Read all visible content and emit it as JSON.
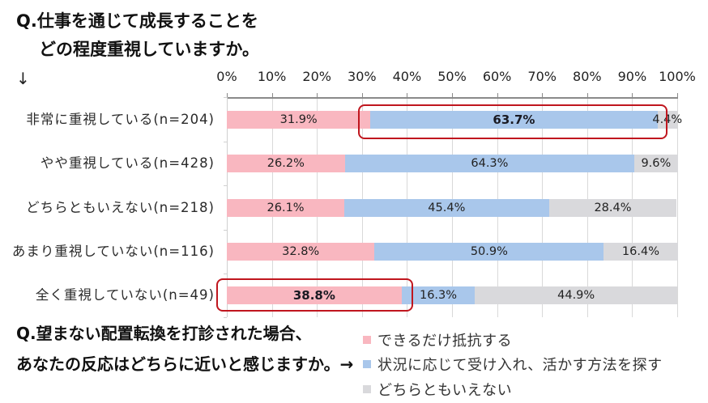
{
  "header": {
    "question1_line1": "Q.仕事を通じて成長することを",
    "question1_line2": "どの程度重視していますか。",
    "down_arrow": "↓"
  },
  "footer": {
    "question2_line1": "Q.望まない配置転換を打診された場合、",
    "question2_line2": "あなたの反応はどちらに近いと感じますか。→"
  },
  "legend": {
    "items": [
      {
        "label": "できるだけ抵抗する",
        "color": "#F9B7C0"
      },
      {
        "label": "状況に応じて受け入れ、活かす方法を探す",
        "color": "#A9C7EB"
      },
      {
        "label": "どちらともいえない",
        "color": "#D9D9DC"
      }
    ]
  },
  "chart_data": {
    "type": "bar",
    "orientation": "horizontal",
    "stacked": true,
    "percent": true,
    "title": "Q.仕事を通じて成長することをどの程度重視していますか。",
    "subtitle": "Q.望まない配置転換を打診された場合、あなたの反応はどちらに近いと感じますか。",
    "xlabel": "",
    "ylabel": "",
    "xlim": [
      0,
      100
    ],
    "xticks": [
      "0%",
      "10%",
      "20%",
      "30%",
      "40%",
      "50%",
      "60%",
      "70%",
      "80%",
      "90%",
      "100%"
    ],
    "grid": true,
    "legend_position": "bottom-right",
    "categories": [
      "非常に重視している(n=204)",
      "やや重視している(n=428)",
      "どちらともいえない(n=218)",
      "あまり重視していない(n=116)",
      "全く重視していない(n=49)"
    ],
    "series": [
      {
        "name": "できるだけ抵抗する",
        "color": "#F9B7C0",
        "values": [
          31.9,
          26.2,
          26.1,
          32.8,
          38.8
        ],
        "labels": [
          "31.9%",
          "26.2%",
          "26.1%",
          "32.8%",
          "38.8%"
        ]
      },
      {
        "name": "状況に応じて受け入れ、活かす方法を探す",
        "color": "#A9C7EB",
        "values": [
          63.7,
          64.3,
          45.4,
          50.9,
          16.3
        ],
        "labels": [
          "63.7%",
          "64.3%",
          "45.4%",
          "50.9%",
          "16.3%"
        ]
      },
      {
        "name": "どちらともいえない",
        "color": "#D9D9DC",
        "values": [
          4.4,
          9.6,
          28.4,
          16.4,
          44.9
        ],
        "labels": [
          "4.4%",
          "9.6%",
          "28.4%",
          "16.4%",
          "44.9%"
        ]
      }
    ],
    "annotations": [
      {
        "type": "highlight-box",
        "row": 0,
        "series": 1,
        "label": "63.7%",
        "color": "#C0161E"
      },
      {
        "type": "highlight-box",
        "row": 4,
        "series": 0,
        "label": "38.8%",
        "color": "#C0161E"
      }
    ]
  }
}
